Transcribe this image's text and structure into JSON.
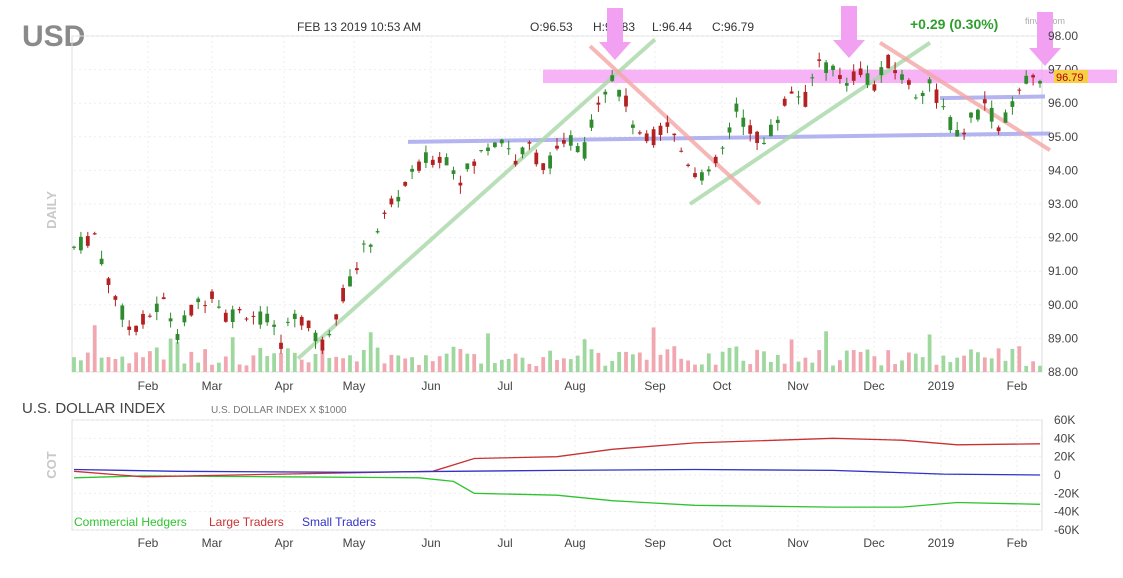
{
  "header": {
    "ticker": "USD",
    "datetime": "FEB 13 2019 10:53 AM",
    "open": "O:96.53",
    "high": "H:96.83",
    "low": "L:96.44",
    "close": "C:96.79",
    "change": "+0.29 (0.30%)",
    "watermark": "finviz.com",
    "last_price": "96.79"
  },
  "colors": {
    "up": "#2e8b2e",
    "down": "#b22222",
    "volume_up": "#9fd89f",
    "volume_down": "#f0a7b0",
    "change": "#2e9e2e",
    "resistance_band": "#f4a6f4",
    "arrow": "#f2a1f2",
    "support_line": "#a7a7ee",
    "trend_up": "#a8d8a8",
    "trend_down": "#f4a6a6",
    "price_badge": "#f5d042",
    "commercial": "#2ec42e",
    "large": "#c83232",
    "small": "#3232c8"
  },
  "chart_data": [
    {
      "type": "candlestick",
      "ylabel": "DAILY",
      "months": [
        "Feb",
        "Mar",
        "Apr",
        "May",
        "Jun",
        "Jul",
        "Aug",
        "Sep",
        "Oct",
        "Nov",
        "Dec",
        "2019",
        "Feb"
      ],
      "y_ticks": [
        "98.00",
        "97.00",
        "96.00",
        "95.00",
        "94.00",
        "93.00",
        "92.00",
        "91.00",
        "90.00",
        "89.00",
        "88.00"
      ],
      "ylim": [
        88,
        98
      ],
      "price_path": [
        [
          0,
          91.7
        ],
        [
          3,
          92.1
        ],
        [
          5,
          90.7
        ],
        [
          8,
          89.3
        ],
        [
          10,
          89.5
        ],
        [
          13,
          90.1
        ],
        [
          15,
          89.2
        ],
        [
          17,
          89.8
        ],
        [
          20,
          90.4
        ],
        [
          22,
          89.7
        ],
        [
          25,
          89.8
        ],
        [
          28,
          89.5
        ],
        [
          30,
          88.9
        ],
        [
          32,
          89.8
        ],
        [
          34,
          89.3
        ],
        [
          36,
          88.8
        ],
        [
          39,
          90.3
        ],
        [
          42,
          91.6
        ],
        [
          45,
          92.6
        ],
        [
          48,
          93.6
        ],
        [
          51,
          94.3
        ],
        [
          54,
          94.4
        ],
        [
          56,
          93.8
        ],
        [
          58,
          94.2
        ],
        [
          60,
          94.8
        ],
        [
          62,
          95.0
        ],
        [
          64,
          94.3
        ],
        [
          66,
          94.7
        ],
        [
          68,
          94.1
        ],
        [
          70,
          94.5
        ],
        [
          72,
          94.9
        ],
        [
          74,
          94.6
        ],
        [
          76,
          96.2
        ],
        [
          78,
          96.8
        ],
        [
          80,
          96.0
        ],
        [
          82,
          94.9
        ],
        [
          84,
          95.0
        ],
        [
          86,
          95.4
        ],
        [
          88,
          94.6
        ],
        [
          90,
          94.0
        ],
        [
          92,
          93.8
        ],
        [
          94,
          94.6
        ],
        [
          96,
          95.8
        ],
        [
          98,
          95.2
        ],
        [
          100,
          94.8
        ],
        [
          102,
          95.6
        ],
        [
          104,
          96.4
        ],
        [
          106,
          96.1
        ],
        [
          108,
          97.3
        ],
        [
          110,
          96.9
        ],
        [
          112,
          96.7
        ],
        [
          114,
          97.0
        ],
        [
          116,
          96.5
        ],
        [
          118,
          97.2
        ],
        [
          120,
          96.8
        ],
        [
          122,
          96.3
        ],
        [
          124,
          96.6
        ],
        [
          126,
          95.8
        ],
        [
          128,
          95.0
        ],
        [
          130,
          95.5
        ],
        [
          132,
          96.0
        ],
        [
          134,
          95.3
        ],
        [
          136,
          95.9
        ],
        [
          138,
          96.6
        ],
        [
          140,
          96.8
        ]
      ],
      "volume_note": "daily volume bars along bottom of price pane",
      "annotations": {
        "resistance_band": [
          96.6,
          97.0
        ],
        "support_lines": [
          [
            94.9,
            95.1
          ],
          [
            96.1,
            96.2
          ]
        ],
        "arrows_at_months": [
          "Aug",
          "Nov",
          "Feb"
        ]
      }
    },
    {
      "type": "line",
      "title": "U.S. DOLLAR INDEX",
      "subtitle": "U.S. DOLLAR INDEX X $1000",
      "ylabel": "COT",
      "y_ticks": [
        "60K",
        "40K",
        "20K",
        "0",
        "-20K",
        "-40K",
        "-60K"
      ],
      "ylim": [
        -60,
        60
      ],
      "months": [
        "Feb",
        "Mar",
        "Apr",
        "May",
        "Jun",
        "Jul",
        "Aug",
        "Sep",
        "Oct",
        "Nov",
        "Dec",
        "2019",
        "Feb"
      ],
      "series": [
        {
          "name": "Commercial Hedgers",
          "points": [
            [
              0,
              -3
            ],
            [
              10,
              -1
            ],
            [
              30,
              -2
            ],
            [
              50,
              -3
            ],
            [
              55,
              -7
            ],
            [
              58,
              -20
            ],
            [
              70,
              -22
            ],
            [
              78,
              -28
            ],
            [
              90,
              -33
            ],
            [
              110,
              -35
            ],
            [
              120,
              -35
            ],
            [
              128,
              -30
            ],
            [
              140,
              -32
            ]
          ]
        },
        {
          "name": "Large Traders",
          "points": [
            [
              0,
              4
            ],
            [
              10,
              -2
            ],
            [
              30,
              1
            ],
            [
              52,
              4
            ],
            [
              58,
              18
            ],
            [
              70,
              20
            ],
            [
              78,
              28
            ],
            [
              90,
              35
            ],
            [
              110,
              40
            ],
            [
              120,
              38
            ],
            [
              128,
              33
            ],
            [
              140,
              34
            ]
          ]
        },
        {
          "name": "Small Traders",
          "points": [
            [
              0,
              6
            ],
            [
              15,
              4
            ],
            [
              40,
              3
            ],
            [
              55,
              4
            ],
            [
              70,
              5
            ],
            [
              90,
              6
            ],
            [
              110,
              5
            ],
            [
              126,
              1
            ],
            [
              140,
              0
            ]
          ]
        }
      ]
    }
  ]
}
